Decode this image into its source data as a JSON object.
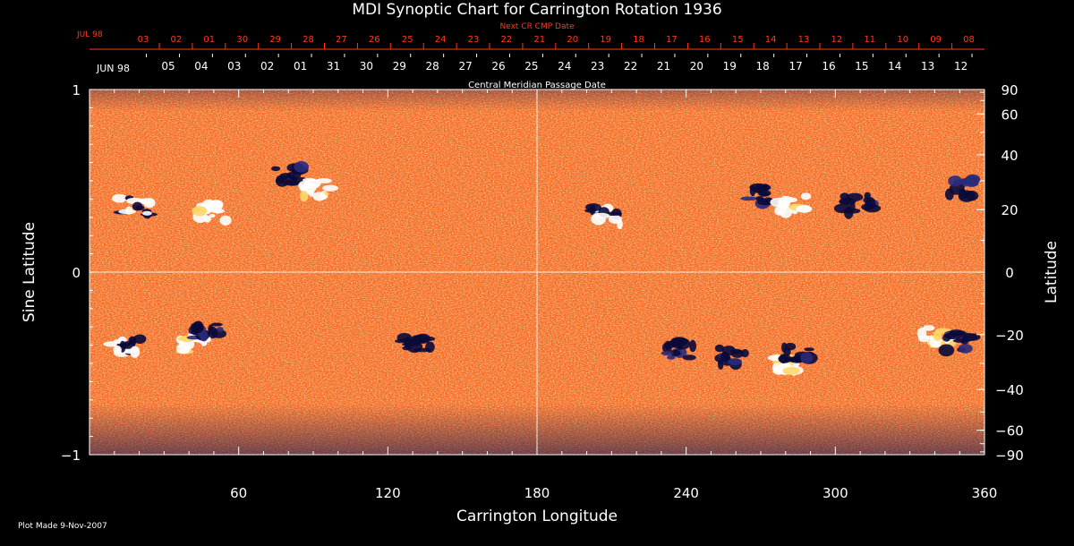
{
  "chart_data": {
    "type": "heatmap",
    "title": "MDI Synoptic Chart for Carrington Rotation 1936",
    "xlabel": "Carrington Longitude",
    "ylabel": "Sine Latitude",
    "y2label": "Latitude",
    "xlim": [
      0,
      360
    ],
    "ylim": [
      -1,
      1
    ],
    "x_ticks": [
      "60",
      "120",
      "180",
      "240",
      "300",
      "360"
    ],
    "y_ticks": [
      "1",
      "0",
      "−1"
    ],
    "latitude_ticks": [
      "90",
      "60",
      "40",
      "20",
      "0",
      "−20",
      "−40",
      "−60",
      "−90"
    ],
    "latitude_tick_values": [
      90,
      60,
      40,
      20,
      0,
      -20,
      -40,
      -60,
      -90
    ],
    "gridlines": {
      "x": [
        180
      ],
      "y": [
        0
      ]
    },
    "colors": {
      "background": "#ff6a1e",
      "positive": "#ffffff",
      "negative": "#0a0a3a",
      "label_red": "#ff3a1a"
    },
    "cmp_axis": {
      "label": "Central Meridian Passage Date",
      "start_label": "JUN 98",
      "dates": [
        "05",
        "04",
        "03",
        "02",
        "01",
        "31",
        "30",
        "29",
        "28",
        "27",
        "26",
        "25",
        "24",
        "23",
        "22",
        "21",
        "20",
        "19",
        "18",
        "17",
        "16",
        "15",
        "14",
        "13",
        "12"
      ]
    },
    "next_cmp_axis": {
      "label": "Next CR CMP Date",
      "start_label": "JUL 98",
      "dates": [
        "03",
        "02",
        "01",
        "30",
        "29",
        "28",
        "27",
        "26",
        "25",
        "24",
        "23",
        "22",
        "21",
        "20",
        "19",
        "18",
        "17",
        "16",
        "15",
        "14",
        "13",
        "12",
        "11",
        "10",
        "09",
        "08"
      ]
    },
    "active_regions": [
      {
        "lon": 18,
        "sinlat": 0.36,
        "polarity": "mixed"
      },
      {
        "lon": 50,
        "sinlat": 0.33,
        "polarity": "positive"
      },
      {
        "lon": 80,
        "sinlat": 0.53,
        "polarity": "negative"
      },
      {
        "lon": 92,
        "sinlat": 0.46,
        "polarity": "positive"
      },
      {
        "lon": 208,
        "sinlat": 0.31,
        "polarity": "mixed"
      },
      {
        "lon": 270,
        "sinlat": 0.42,
        "polarity": "negative"
      },
      {
        "lon": 283,
        "sinlat": 0.37,
        "polarity": "positive"
      },
      {
        "lon": 309,
        "sinlat": 0.37,
        "polarity": "negative"
      },
      {
        "lon": 350,
        "sinlat": 0.46,
        "polarity": "negative"
      },
      {
        "lon": 15,
        "sinlat": -0.4,
        "polarity": "mixed"
      },
      {
        "lon": 42,
        "sinlat": -0.4,
        "polarity": "positive"
      },
      {
        "lon": 47,
        "sinlat": -0.32,
        "polarity": "negative"
      },
      {
        "lon": 132,
        "sinlat": -0.38,
        "polarity": "negative"
      },
      {
        "lon": 238,
        "sinlat": -0.42,
        "polarity": "negative"
      },
      {
        "lon": 258,
        "sinlat": -0.46,
        "polarity": "negative"
      },
      {
        "lon": 278,
        "sinlat": -0.5,
        "polarity": "positive"
      },
      {
        "lon": 285,
        "sinlat": -0.44,
        "polarity": "negative"
      },
      {
        "lon": 340,
        "sinlat": -0.35,
        "polarity": "positive"
      },
      {
        "lon": 350,
        "sinlat": -0.38,
        "polarity": "negative"
      }
    ]
  },
  "footer": {
    "plot_made": "Plot Made  9-Nov-2007"
  }
}
